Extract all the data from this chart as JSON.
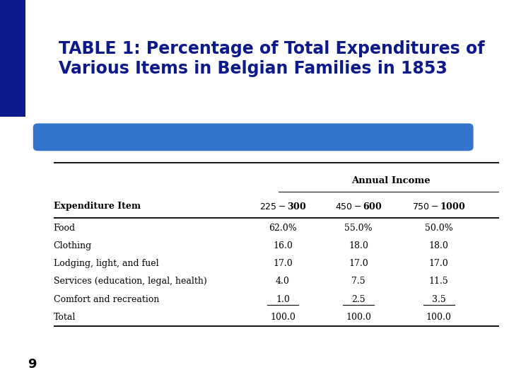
{
  "title_line1": "TABLE 1: Percentage of Total Expenditures of",
  "title_line2": "Various Items in Belgian Families in 1853",
  "title_color": "#0d1a8c",
  "title_fontsize": 17,
  "bg_color": "#ffffff",
  "dark_blue": "#0d1a8c",
  "accent_blue": "#3375cc",
  "slide_number": "9",
  "header_group": "Annual Income",
  "col_headers": [
    "$225-$300",
    "$450-$600",
    "$750-$1000"
  ],
  "row_header": "Expenditure Item",
  "rows": [
    [
      "Food",
      "62.0%",
      "55.0%",
      "50.0%"
    ],
    [
      "Clothing",
      "16.0",
      "18.0",
      "18.0"
    ],
    [
      "Lodging, light, and fuel",
      "17.0",
      "17.0",
      "17.0"
    ],
    [
      "Services (education, legal, health)",
      "4.0",
      "7.5",
      "11.5"
    ],
    [
      "Comfort and recreation",
      "1.0",
      "2.5",
      "3.5"
    ],
    [
      "Total",
      "100.0",
      "100.0",
      "100.0"
    ]
  ],
  "underline_rows": [
    4
  ],
  "total_row_index": 5
}
